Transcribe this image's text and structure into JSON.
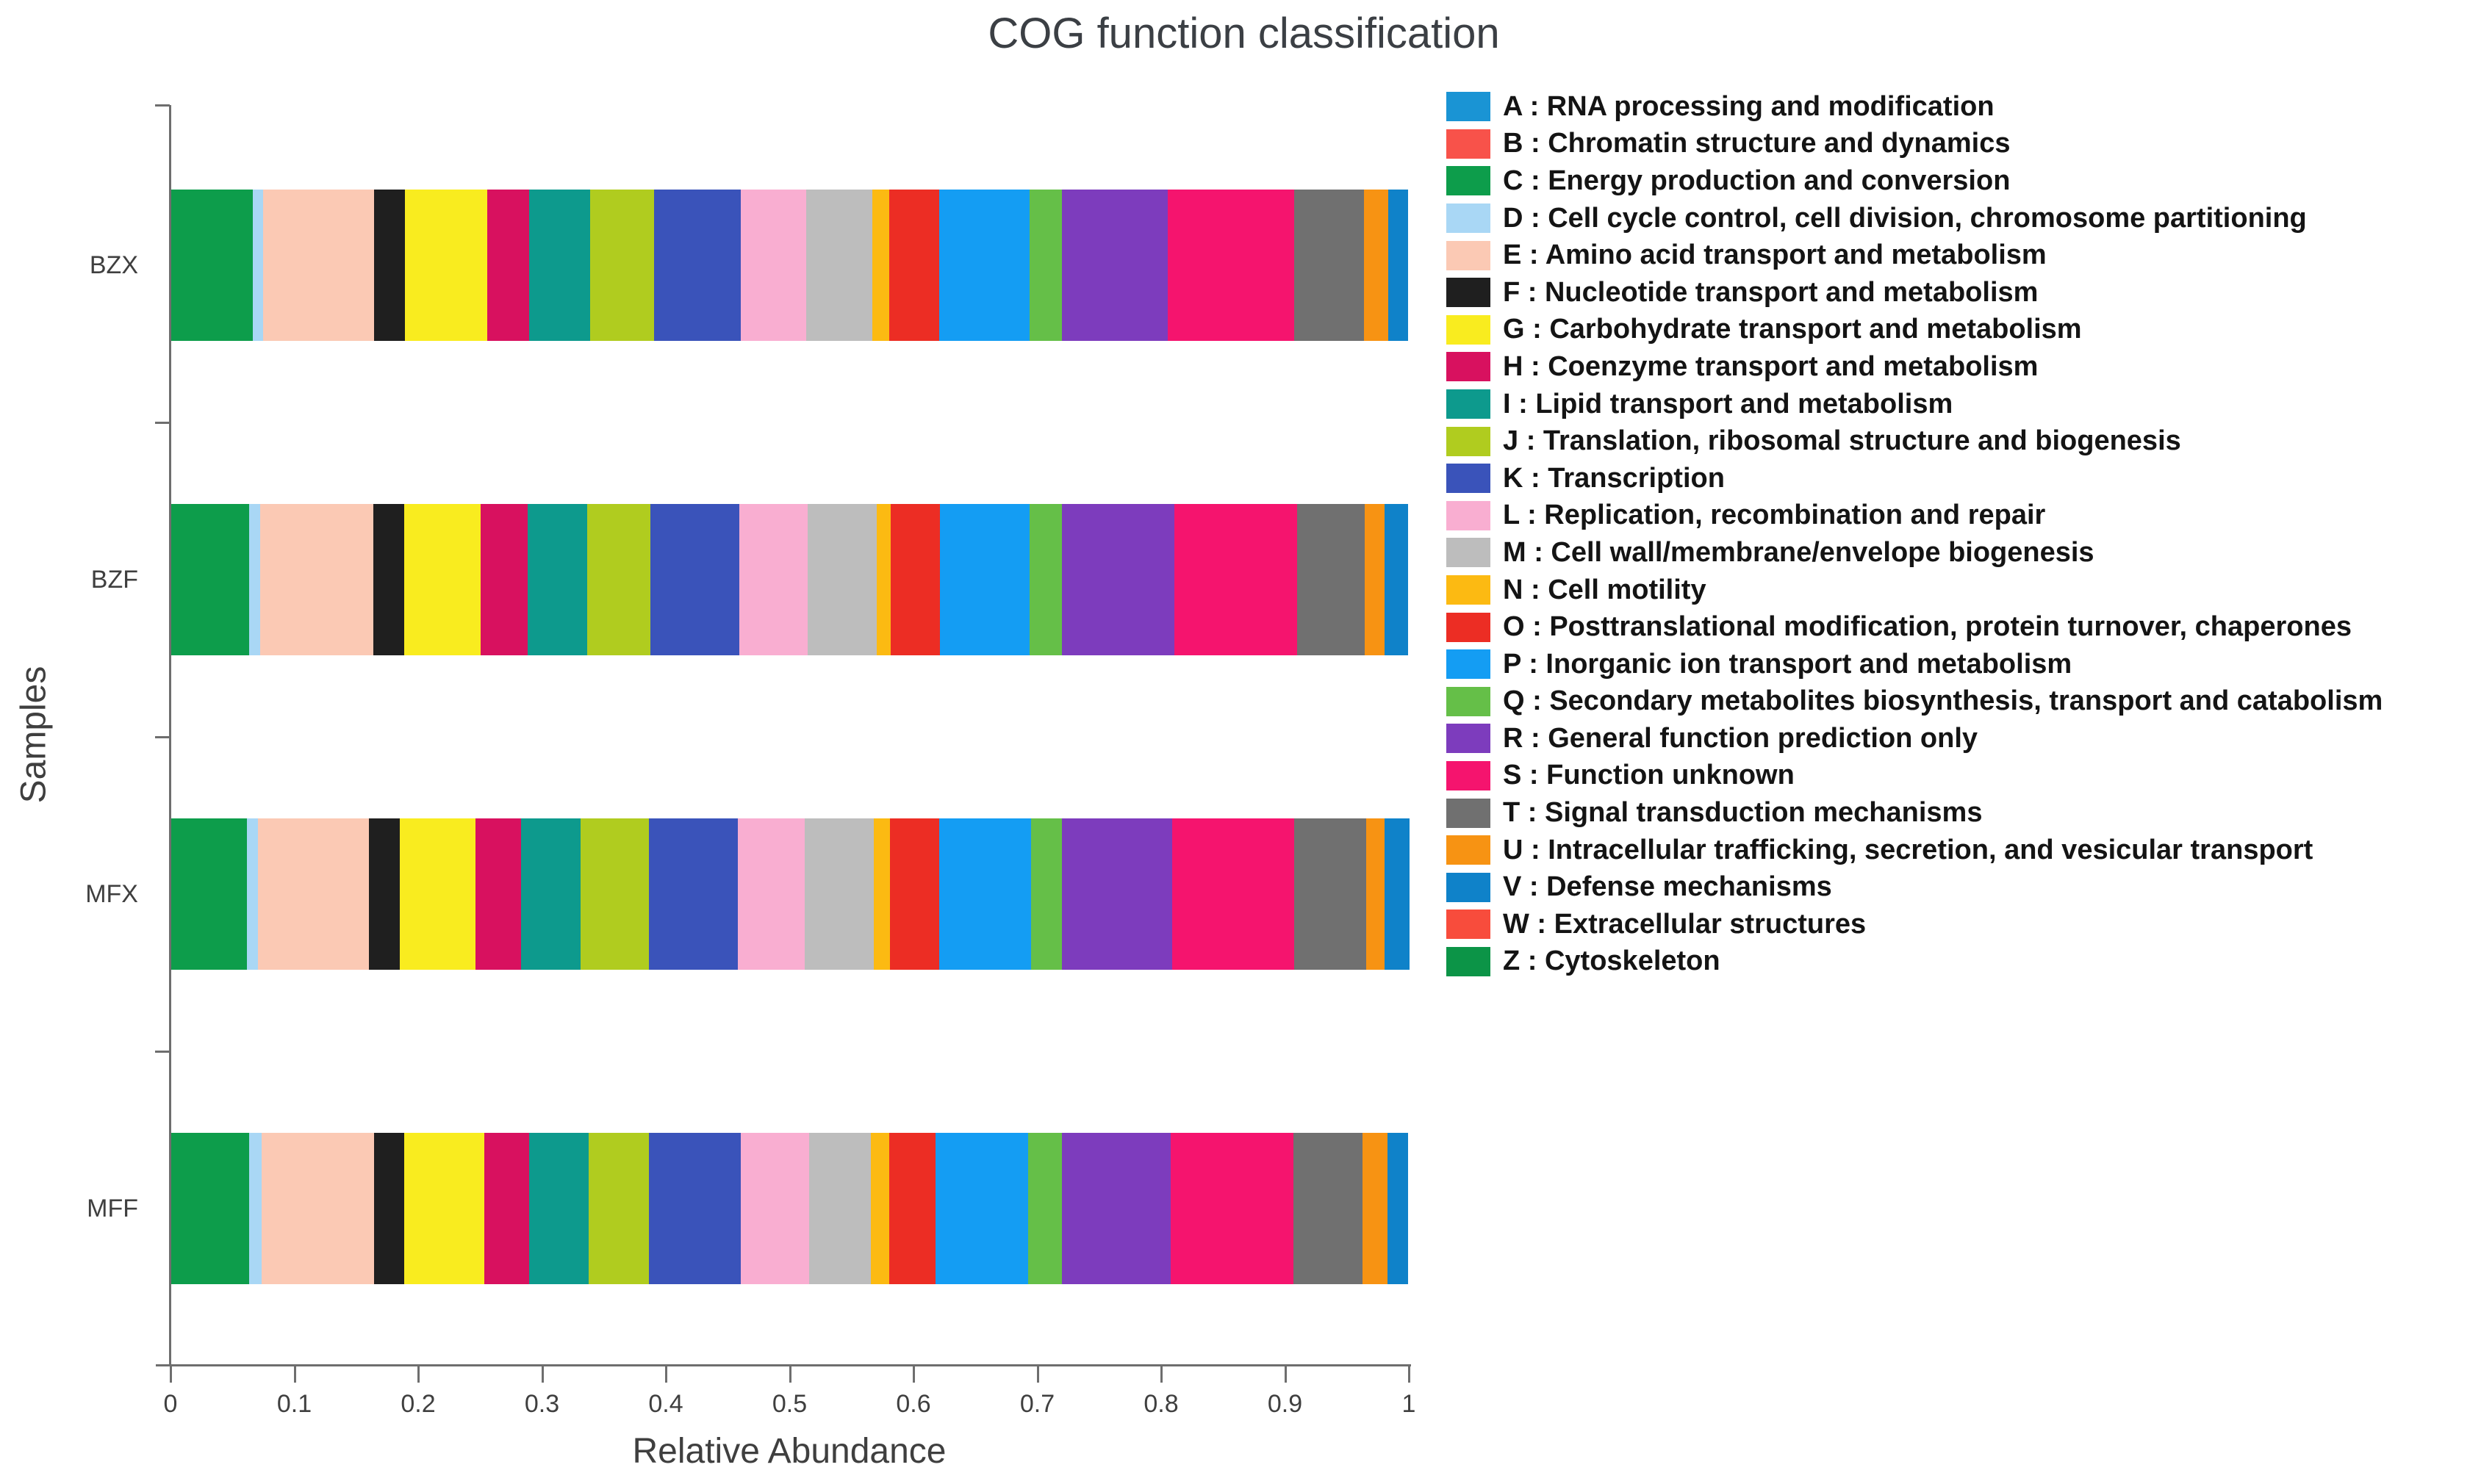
{
  "chart_data": {
    "type": "bar",
    "orientation": "horizontal",
    "stacked": true,
    "title": "COG function classification",
    "xlabel": "Relative Abundance",
    "ylabel": "Samples",
    "xlim": [
      0,
      1
    ],
    "x_tick_labels": [
      "0",
      "0.1",
      "0.2",
      "0.3",
      "0.4",
      "0.5",
      "0.6",
      "0.7",
      "0.8",
      "0.9",
      "1"
    ],
    "grid": false,
    "legend_position": "right",
    "legend_separator": " : ",
    "categories": [
      "BZX",
      "BZF",
      "MFX",
      "MFF"
    ],
    "series": [
      {
        "letter": "A",
        "name": "RNA processing and modification",
        "color": "#1a94d4",
        "values": [
          0,
          0,
          0,
          0
        ]
      },
      {
        "letter": "B",
        "name": "Chromatin structure and dynamics",
        "color": "#f8524a",
        "values": [
          0,
          0,
          0,
          0
        ]
      },
      {
        "letter": "C",
        "name": "Energy production and conversion",
        "color": "#0d9d4b",
        "values": [
          0.066,
          0.063,
          0.061,
          0.063
        ]
      },
      {
        "letter": "D",
        "name": "Cell cycle control, cell division, chromosome partitioning",
        "color": "#a9d7f5",
        "values": [
          0.008,
          0.009,
          0.009,
          0.01
        ]
      },
      {
        "letter": "E",
        "name": "Amino acid transport and metabolism",
        "color": "#fbc9b4",
        "values": [
          0.09,
          0.091,
          0.09,
          0.091
        ]
      },
      {
        "letter": "F",
        "name": "Nucleotide transport and metabolism",
        "color": "#1f1f1f",
        "values": [
          0.025,
          0.025,
          0.025,
          0.024
        ]
      },
      {
        "letter": "G",
        "name": "Carbohydrate transport and metabolism",
        "color": "#f9ec1f",
        "values": [
          0.066,
          0.062,
          0.061,
          0.065
        ]
      },
      {
        "letter": "H",
        "name": "Coenzyme transport and metabolism",
        "color": "#d8115f",
        "values": [
          0.034,
          0.038,
          0.037,
          0.036
        ]
      },
      {
        "letter": "I",
        "name": "Lipid transport and metabolism",
        "color": "#0d9a8d",
        "values": [
          0.049,
          0.048,
          0.048,
          0.048
        ]
      },
      {
        "letter": "J",
        "name": "Translation, ribosomal structure and biogenesis",
        "color": "#b0cc1f",
        "values": [
          0.052,
          0.051,
          0.055,
          0.049
        ]
      },
      {
        "letter": "K",
        "name": "Transcription",
        "color": "#3a53ba",
        "values": [
          0.07,
          0.072,
          0.072,
          0.074
        ]
      },
      {
        "letter": "L",
        "name": "Replication, recombination and repair",
        "color": "#f9aed1",
        "values": [
          0.053,
          0.055,
          0.054,
          0.055
        ]
      },
      {
        "letter": "M",
        "name": "Cell wall/membrane/envelope biogenesis",
        "color": "#bdbdbd",
        "values": [
          0.053,
          0.056,
          0.056,
          0.05
        ]
      },
      {
        "letter": "N",
        "name": "Cell motility",
        "color": "#fcba12",
        "values": [
          0.014,
          0.011,
          0.013,
          0.015
        ]
      },
      {
        "letter": "O",
        "name": "Posttranslational modification, protein turnover, chaperones",
        "color": "#ec2d24",
        "values": [
          0.04,
          0.04,
          0.04,
          0.037
        ]
      },
      {
        "letter": "P",
        "name": "Inorganic ion transport and metabolism",
        "color": "#149df3",
        "values": [
          0.073,
          0.072,
          0.074,
          0.075
        ]
      },
      {
        "letter": "Q",
        "name": " Secondary metabolites biosynthesis, transport and catabolism",
        "color": "#65bf48",
        "values": [
          0.026,
          0.026,
          0.025,
          0.027
        ]
      },
      {
        "letter": "R",
        "name": "General function prediction only",
        "color": "#7d3cbd",
        "values": [
          0.086,
          0.091,
          0.089,
          0.088
        ]
      },
      {
        "letter": "S",
        "name": "Function unknown",
        "color": "#f5146e",
        "values": [
          0.102,
          0.099,
          0.099,
          0.099
        ]
      },
      {
        "letter": "T",
        "name": "Signal transduction mechanisms",
        "color": "#707070",
        "values": [
          0.056,
          0.055,
          0.058,
          0.056
        ]
      },
      {
        "letter": "U",
        "name": "Intracellular trafficking, secretion, and vesicular transport",
        "color": "#f79313",
        "values": [
          0.02,
          0.016,
          0.015,
          0.02
        ]
      },
      {
        "letter": "V",
        "name": "Defense mechanisms",
        "color": "#0f82c9",
        "values": [
          0.016,
          0.019,
          0.02,
          0.017
        ]
      },
      {
        "letter": "W",
        "name": "Extracellular structures",
        "color": "#f84c3c",
        "values": [
          0,
          0,
          0,
          0
        ]
      },
      {
        "letter": "Z",
        "name": "Cytoskeleton",
        "color": "#0c9447",
        "values": [
          0,
          0,
          0,
          0
        ]
      }
    ]
  }
}
